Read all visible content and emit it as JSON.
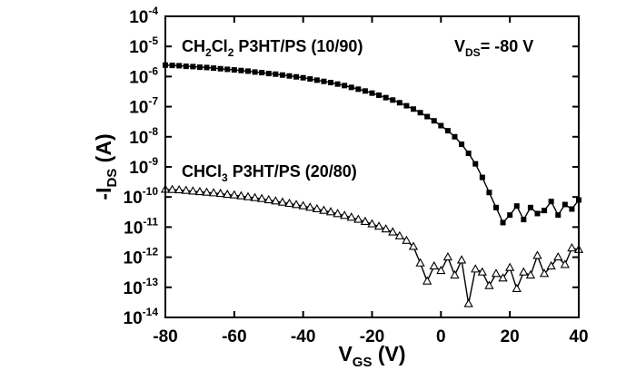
{
  "chart_data": {
    "type": "scatter",
    "xlabel": {
      "main": "V",
      "sub": "GS",
      "unit": " (V)"
    },
    "ylabel": {
      "pre": "-I",
      "sub": "DS",
      "unit": " (A)"
    },
    "xlim": [
      -80,
      40
    ],
    "ylim_exponent": [
      -14,
      -4
    ],
    "yscale": "log",
    "grid": false,
    "xticks": [
      "-80",
      "-60",
      "-40",
      "-20",
      "0",
      "20",
      "40"
    ],
    "ytick_base": "10",
    "yticks_exp": [
      "-4",
      "-5",
      "-6",
      "-7",
      "-8",
      "-9",
      "-10",
      "-11",
      "-12",
      "-13",
      "-14"
    ],
    "annotation_vds": {
      "main": "V",
      "sub": "DS",
      "rest": "= -80 V"
    },
    "series": [
      {
        "label_parts": [
          [
            "CH",
            ""
          ],
          [
            "2",
            "sub"
          ],
          [
            "Cl",
            ""
          ],
          [
            "2",
            "sub"
          ],
          [
            " P3HT/PS (10/90)",
            ""
          ]
        ],
        "marker": "square",
        "color": "#000000",
        "x": [
          -80,
          -78,
          -76,
          -74,
          -72,
          -70,
          -68,
          -66,
          -64,
          -62,
          -60,
          -58,
          -56,
          -54,
          -52,
          -50,
          -48,
          -46,
          -44,
          -42,
          -40,
          -38,
          -36,
          -34,
          -32,
          -30,
          -28,
          -26,
          -24,
          -22,
          -20,
          -18,
          -16,
          -14,
          -12,
          -10,
          -8,
          -6,
          -4,
          -2,
          0,
          2,
          4,
          6,
          8,
          10,
          12,
          14,
          16,
          18,
          20,
          22,
          24,
          26,
          28,
          30,
          32,
          34,
          36,
          38,
          40
        ],
        "y_exp": [
          -5.62,
          -5.63,
          -5.64,
          -5.66,
          -5.67,
          -5.69,
          -5.7,
          -5.72,
          -5.74,
          -5.76,
          -5.78,
          -5.8,
          -5.82,
          -5.85,
          -5.87,
          -5.9,
          -5.92,
          -5.95,
          -5.98,
          -6.01,
          -6.04,
          -6.08,
          -6.12,
          -6.16,
          -6.2,
          -6.25,
          -6.3,
          -6.36,
          -6.42,
          -6.48,
          -6.55,
          -6.62,
          -6.7,
          -6.78,
          -6.87,
          -6.97,
          -7.08,
          -7.2,
          -7.33,
          -7.47,
          -7.63,
          -7.8,
          -8.0,
          -8.25,
          -8.55,
          -8.9,
          -9.35,
          -9.85,
          -10.35,
          -10.85,
          -10.6,
          -10.3,
          -10.75,
          -10.35,
          -10.55,
          -10.45,
          -10.15,
          -10.6,
          -10.25,
          -10.4,
          -10.1
        ]
      },
      {
        "label_parts": [
          [
            "CHCl",
            ""
          ],
          [
            "3",
            "sub"
          ],
          [
            " P3HT/PS (20/80)",
            ""
          ]
        ],
        "marker": "triangle",
        "color": "#000000",
        "x": [
          -80,
          -78,
          -76,
          -74,
          -72,
          -70,
          -68,
          -66,
          -64,
          -62,
          -60,
          -58,
          -56,
          -54,
          -52,
          -50,
          -48,
          -46,
          -44,
          -42,
          -40,
          -38,
          -36,
          -34,
          -32,
          -30,
          -28,
          -26,
          -24,
          -22,
          -20,
          -18,
          -16,
          -14,
          -12,
          -10,
          -8,
          -6,
          -4,
          -2,
          0,
          2,
          4,
          6,
          8,
          10,
          12,
          14,
          16,
          18,
          20,
          22,
          24,
          26,
          28,
          30,
          32,
          34,
          36,
          38,
          40
        ],
        "y_exp": [
          -9.75,
          -9.76,
          -9.77,
          -9.79,
          -9.81,
          -9.83,
          -9.85,
          -9.87,
          -9.89,
          -9.92,
          -9.94,
          -9.97,
          -10.0,
          -10.03,
          -10.06,
          -10.1,
          -10.14,
          -10.18,
          -10.22,
          -10.26,
          -10.3,
          -10.35,
          -10.4,
          -10.45,
          -10.5,
          -10.56,
          -10.62,
          -10.68,
          -10.75,
          -10.82,
          -10.9,
          -10.98,
          -11.07,
          -11.17,
          -11.3,
          -11.45,
          -11.65,
          -12.2,
          -12.8,
          -12.3,
          -12.45,
          -12.0,
          -12.6,
          -12.1,
          -13.55,
          -12.4,
          -12.5,
          -12.95,
          -12.55,
          -12.7,
          -12.35,
          -13.05,
          -12.5,
          -12.6,
          -11.95,
          -12.55,
          -12.3,
          -12.0,
          -12.25,
          -11.7,
          -11.75
        ]
      }
    ]
  }
}
